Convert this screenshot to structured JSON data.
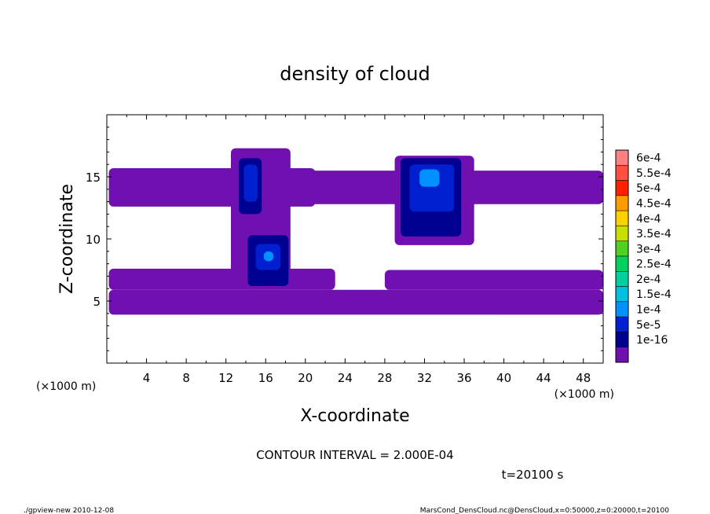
{
  "chart_data": {
    "type": "heatmap",
    "title": "density of cloud",
    "xlabel": "X-coordinate",
    "ylabel": "Z-coordinate",
    "x_unit_left": "(×1000 m)",
    "x_unit_right": "(×1000 m)",
    "xlim": [
      0,
      50
    ],
    "ylim": [
      0,
      20
    ],
    "x_ticks": [
      4,
      8,
      12,
      16,
      20,
      24,
      28,
      32,
      36,
      40,
      44,
      48
    ],
    "y_ticks": [
      5,
      10,
      15
    ],
    "contour_interval": "CONTOUR INTERVAL = 2.000E-04",
    "time_label": "t=20100 s",
    "colorbar": {
      "labels": [
        "6e-4",
        "5.5e-4",
        "5e-4",
        "4.5e-4",
        "4e-4",
        "3.5e-4",
        "3e-4",
        "2.5e-4",
        "2e-4",
        "1.5e-4",
        "1e-4",
        "5e-5",
        "1e-16"
      ],
      "colors": [
        "#ff8080",
        "#ff5040",
        "#ff2000",
        "#ff9a00",
        "#ffd000",
        "#c8e000",
        "#50d020",
        "#00d060",
        "#00d0a0",
        "#00c0e0",
        "#0090ff",
        "#0020d0",
        "#000090",
        "#7010b0"
      ]
    },
    "regions": [
      {
        "level": "1e-16",
        "x": [
          0.2,
          21
        ],
        "z": [
          12.6,
          15.7
        ]
      },
      {
        "level": "1e-16",
        "x": [
          20,
          50
        ],
        "z": [
          12.8,
          15.5
        ]
      },
      {
        "level": "1e-16",
        "x": [
          12.5,
          18.5
        ],
        "z": [
          6.5,
          17.3
        ]
      },
      {
        "level": "1e-16",
        "x": [
          29,
          37
        ],
        "z": [
          9.5,
          16.7
        ]
      },
      {
        "level": "1e-16",
        "x": [
          0.2,
          23
        ],
        "z": [
          5.9,
          7.6
        ]
      },
      {
        "level": "1e-16",
        "x": [
          28,
          50
        ],
        "z": [
          5.9,
          7.5
        ]
      },
      {
        "level": "1e-16",
        "x": [
          0.2,
          50
        ],
        "z": [
          3.9,
          5.9
        ]
      },
      {
        "level": "5e-5",
        "x": [
          13.3,
          15.6
        ],
        "z": [
          12.0,
          16.5
        ]
      },
      {
        "level": "1e-4",
        "x": [
          13.8,
          15.2
        ],
        "z": [
          13.0,
          16.0
        ]
      },
      {
        "level": "5e-5",
        "x": [
          14.2,
          18.3
        ],
        "z": [
          6.2,
          10.3
        ]
      },
      {
        "level": "1e-4",
        "x": [
          15.0,
          17.5
        ],
        "z": [
          7.5,
          9.6
        ]
      },
      {
        "level": "1.5e-4",
        "x": [
          15.8,
          16.8
        ],
        "z": [
          8.2,
          9.0
        ]
      },
      {
        "level": "5e-5",
        "x": [
          29.6,
          35.7
        ],
        "z": [
          10.2,
          16.5
        ]
      },
      {
        "level": "1e-4",
        "x": [
          30.5,
          35.0
        ],
        "z": [
          12.2,
          16.0
        ]
      },
      {
        "level": "1.5e-4",
        "x": [
          31.5,
          33.5
        ],
        "z": [
          14.2,
          15.6
        ]
      }
    ]
  },
  "footer": {
    "left": "./gpview-new  2010-12-08",
    "right": "MarsCond_DensCloud.nc@DensCloud,x=0:50000,z=0:20000,t=20100"
  }
}
